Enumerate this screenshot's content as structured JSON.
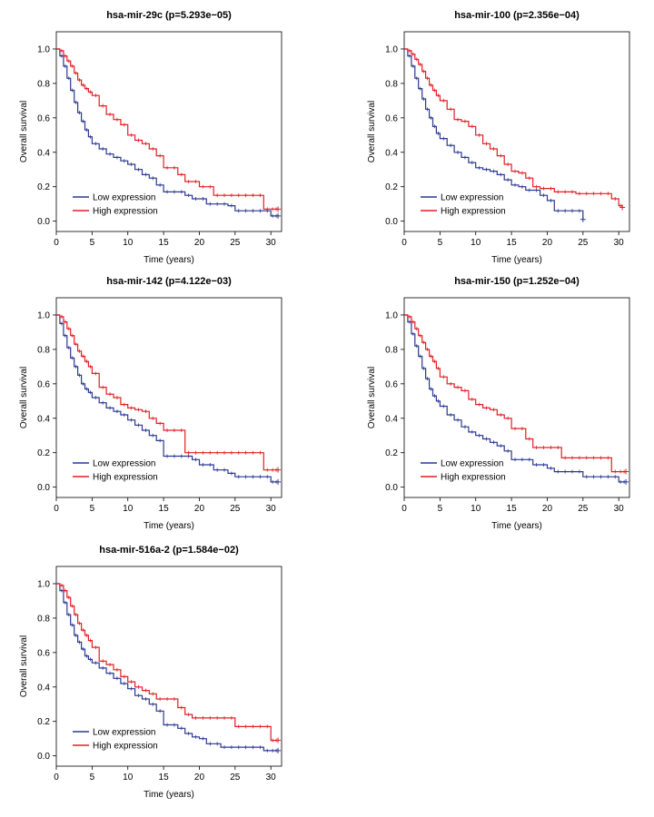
{
  "chart_data": [
    {
      "type": "line",
      "title": "hsa-mir-29c (p=5.293e−05)",
      "xlabel": "Time (years)",
      "ylabel": "Overall survival",
      "xlim": [
        0,
        31.5
      ],
      "ylim": [
        -0.06,
        1.1
      ],
      "xticks": [
        0,
        5,
        10,
        15,
        20,
        25,
        30
      ],
      "yticks": [
        "0.0",
        "0.2",
        "0.4",
        "0.6",
        "0.8",
        "1.0"
      ],
      "legend_position": "bottom-left",
      "series": [
        {
          "name": "Low expression",
          "color": "#2b3990",
          "x": [
            0,
            0.5,
            1,
            1.5,
            2,
            2.5,
            3,
            3.5,
            4,
            4.5,
            5,
            6,
            7,
            8,
            9,
            10,
            11,
            12,
            13,
            14,
            15,
            16,
            17,
            18,
            19,
            20,
            21,
            22,
            23,
            24,
            25,
            26,
            27,
            28,
            29,
            30,
            30.5,
            31
          ],
          "y": [
            1.0,
            0.96,
            0.9,
            0.83,
            0.76,
            0.69,
            0.63,
            0.58,
            0.53,
            0.49,
            0.45,
            0.42,
            0.39,
            0.37,
            0.35,
            0.33,
            0.3,
            0.27,
            0.25,
            0.21,
            0.17,
            0.17,
            0.17,
            0.15,
            0.13,
            0.13,
            0.1,
            0.1,
            0.1,
            0.09,
            0.06,
            0.06,
            0.06,
            0.06,
            0.06,
            0.03,
            0.03,
            0.03
          ]
        },
        {
          "name": "High expression",
          "color": "#e31e24",
          "x": [
            0,
            0.5,
            1,
            1.5,
            2,
            2.5,
            3,
            3.5,
            4,
            4.5,
            5,
            6,
            7,
            8,
            9,
            10,
            11,
            12,
            13,
            14,
            15,
            16,
            17,
            18,
            19,
            20,
            21,
            22,
            23,
            24,
            25,
            26,
            27,
            28,
            29,
            30,
            30.5,
            31
          ],
          "y": [
            1.0,
            0.99,
            0.96,
            0.93,
            0.9,
            0.86,
            0.82,
            0.79,
            0.77,
            0.75,
            0.73,
            0.67,
            0.62,
            0.59,
            0.56,
            0.5,
            0.47,
            0.45,
            0.42,
            0.38,
            0.31,
            0.31,
            0.27,
            0.23,
            0.23,
            0.2,
            0.2,
            0.15,
            0.15,
            0.15,
            0.15,
            0.15,
            0.15,
            0.15,
            0.07,
            0.07,
            0.07,
            0.07
          ]
        }
      ]
    },
    {
      "type": "line",
      "title": "hsa-mir-100 (p=2.356e−04)",
      "xlabel": "Time (years)",
      "ylabel": "Overall survival",
      "xlim": [
        0,
        31.5
      ],
      "ylim": [
        -0.06,
        1.1
      ],
      "xticks": [
        0,
        5,
        10,
        15,
        20,
        25,
        30
      ],
      "yticks": [
        "0.0",
        "0.2",
        "0.4",
        "0.6",
        "0.8",
        "1.0"
      ],
      "legend_position": "bottom-left",
      "series": [
        {
          "name": "Low expression",
          "color": "#2b3990",
          "x": [
            0,
            0.5,
            1,
            1.5,
            2,
            2.5,
            3,
            3.5,
            4,
            4.5,
            5,
            6,
            7,
            8,
            9,
            10,
            11,
            12,
            13,
            14,
            15,
            16,
            17,
            18,
            19,
            20,
            21,
            22,
            23,
            24,
            25
          ],
          "y": [
            1.0,
            0.96,
            0.9,
            0.83,
            0.77,
            0.71,
            0.65,
            0.6,
            0.55,
            0.51,
            0.48,
            0.44,
            0.4,
            0.37,
            0.34,
            0.31,
            0.3,
            0.29,
            0.27,
            0.24,
            0.21,
            0.2,
            0.18,
            0.18,
            0.15,
            0.12,
            0.06,
            0.06,
            0.06,
            0.06,
            0.01
          ]
        },
        {
          "name": "High expression",
          "color": "#e31e24",
          "x": [
            0,
            0.5,
            1,
            1.5,
            2,
            2.5,
            3,
            3.5,
            4,
            4.5,
            5,
            6,
            7,
            8,
            9,
            10,
            11,
            12,
            13,
            14,
            15,
            16,
            17,
            18,
            19,
            20,
            21,
            22,
            23,
            24,
            25,
            26,
            27,
            28,
            29,
            30,
            30.5
          ],
          "y": [
            1.0,
            0.99,
            0.97,
            0.94,
            0.91,
            0.87,
            0.83,
            0.79,
            0.76,
            0.73,
            0.7,
            0.65,
            0.59,
            0.58,
            0.55,
            0.5,
            0.45,
            0.42,
            0.38,
            0.33,
            0.29,
            0.28,
            0.25,
            0.2,
            0.19,
            0.19,
            0.17,
            0.17,
            0.17,
            0.16,
            0.16,
            0.16,
            0.16,
            0.16,
            0.13,
            0.09,
            0.08
          ]
        }
      ]
    },
    {
      "type": "line",
      "title": "hsa-mir-142 (p=4.122e−03)",
      "xlabel": "Time (years)",
      "ylabel": "Overall survival",
      "xlim": [
        0,
        31.5
      ],
      "ylim": [
        -0.06,
        1.1
      ],
      "xticks": [
        0,
        5,
        10,
        15,
        20,
        25,
        30
      ],
      "yticks": [
        "0.0",
        "0.2",
        "0.4",
        "0.6",
        "0.8",
        "1.0"
      ],
      "legend_position": "bottom-left",
      "series": [
        {
          "name": "Low expression",
          "color": "#2b3990",
          "x": [
            0,
            0.5,
            1,
            1.5,
            2,
            2.5,
            3,
            3.5,
            4,
            4.5,
            5,
            6,
            7,
            8,
            9,
            10,
            11,
            12,
            13,
            14,
            15,
            16,
            17,
            18,
            19,
            20,
            21,
            22,
            23,
            24,
            25,
            26,
            27,
            28,
            29,
            30,
            30.5,
            31
          ],
          "y": [
            1.0,
            0.95,
            0.88,
            0.81,
            0.75,
            0.7,
            0.65,
            0.6,
            0.57,
            0.55,
            0.52,
            0.49,
            0.46,
            0.44,
            0.42,
            0.39,
            0.36,
            0.33,
            0.3,
            0.27,
            0.18,
            0.18,
            0.18,
            0.18,
            0.16,
            0.13,
            0.13,
            0.1,
            0.1,
            0.08,
            0.06,
            0.06,
            0.06,
            0.06,
            0.06,
            0.03,
            0.03,
            0.03
          ]
        },
        {
          "name": "High expression",
          "color": "#e31e24",
          "x": [
            0,
            0.5,
            1,
            1.5,
            2,
            2.5,
            3,
            3.5,
            4,
            4.5,
            5,
            6,
            7,
            8,
            9,
            10,
            11,
            12,
            13,
            14,
            15,
            16,
            17,
            18,
            19,
            20,
            21,
            22,
            23,
            24,
            25,
            26,
            27,
            28,
            29,
            30,
            30.5,
            31
          ],
          "y": [
            1.0,
            0.99,
            0.96,
            0.92,
            0.88,
            0.83,
            0.79,
            0.76,
            0.73,
            0.7,
            0.66,
            0.58,
            0.54,
            0.52,
            0.48,
            0.46,
            0.45,
            0.44,
            0.4,
            0.37,
            0.33,
            0.33,
            0.33,
            0.2,
            0.2,
            0.2,
            0.2,
            0.2,
            0.2,
            0.2,
            0.2,
            0.2,
            0.2,
            0.2,
            0.1,
            0.1,
            0.1,
            0.1
          ]
        }
      ]
    },
    {
      "type": "line",
      "title": "hsa-mir-150 (p=1.252e−04)",
      "xlabel": "Time (years)",
      "ylabel": "Overall survival",
      "xlim": [
        0,
        31.5
      ],
      "ylim": [
        -0.06,
        1.1
      ],
      "xticks": [
        0,
        5,
        10,
        15,
        20,
        25,
        30
      ],
      "yticks": [
        "0.0",
        "0.2",
        "0.4",
        "0.6",
        "0.8",
        "1.0"
      ],
      "legend_position": "bottom-left",
      "series": [
        {
          "name": "Low expression",
          "color": "#2b3990",
          "x": [
            0,
            0.5,
            1,
            1.5,
            2,
            2.5,
            3,
            3.5,
            4,
            4.5,
            5,
            6,
            7,
            8,
            9,
            10,
            11,
            12,
            13,
            14,
            15,
            16,
            17,
            18,
            19,
            20,
            21,
            22,
            23,
            24,
            25,
            26,
            27,
            28,
            29,
            30,
            30.5,
            31
          ],
          "y": [
            1.0,
            0.96,
            0.89,
            0.82,
            0.76,
            0.69,
            0.63,
            0.57,
            0.53,
            0.5,
            0.47,
            0.42,
            0.39,
            0.35,
            0.32,
            0.3,
            0.28,
            0.26,
            0.24,
            0.21,
            0.16,
            0.16,
            0.16,
            0.13,
            0.13,
            0.11,
            0.09,
            0.09,
            0.09,
            0.09,
            0.06,
            0.06,
            0.06,
            0.06,
            0.06,
            0.03,
            0.03,
            0.03
          ]
        },
        {
          "name": "High expression",
          "color": "#e31e24",
          "x": [
            0,
            0.5,
            1,
            1.5,
            2,
            2.5,
            3,
            3.5,
            4,
            4.5,
            5,
            6,
            7,
            8,
            9,
            10,
            11,
            12,
            13,
            14,
            15,
            16,
            17,
            18,
            19,
            20,
            21,
            22,
            23,
            24,
            25,
            26,
            27,
            28,
            29,
            30,
            30.5,
            31
          ],
          "y": [
            1.0,
            0.99,
            0.96,
            0.92,
            0.88,
            0.84,
            0.8,
            0.76,
            0.73,
            0.69,
            0.64,
            0.6,
            0.58,
            0.56,
            0.51,
            0.48,
            0.46,
            0.45,
            0.42,
            0.4,
            0.34,
            0.34,
            0.28,
            0.23,
            0.23,
            0.23,
            0.23,
            0.17,
            0.17,
            0.17,
            0.17,
            0.17,
            0.17,
            0.17,
            0.09,
            0.09,
            0.09,
            0.09
          ]
        }
      ]
    },
    {
      "type": "line",
      "title": "hsa-mir-516a-2 (p=1.584e−02)",
      "xlabel": "Time (years)",
      "ylabel": "Overall survival",
      "xlim": [
        0,
        31.5
      ],
      "ylim": [
        -0.06,
        1.1
      ],
      "xticks": [
        0,
        5,
        10,
        15,
        20,
        25,
        30
      ],
      "yticks": [
        "0.0",
        "0.2",
        "0.4",
        "0.6",
        "0.8",
        "1.0"
      ],
      "legend_position": "bottom-left",
      "series": [
        {
          "name": "Low expression",
          "color": "#2b3990",
          "x": [
            0,
            0.5,
            1,
            1.5,
            2,
            2.5,
            3,
            3.5,
            4,
            4.5,
            5,
            6,
            7,
            8,
            9,
            10,
            11,
            12,
            13,
            14,
            15,
            16,
            17,
            18,
            19,
            20,
            21,
            22,
            23,
            24,
            25,
            26,
            27,
            28,
            29,
            30,
            30.5,
            31
          ],
          "y": [
            1.0,
            0.96,
            0.89,
            0.82,
            0.76,
            0.7,
            0.66,
            0.62,
            0.58,
            0.56,
            0.54,
            0.51,
            0.48,
            0.45,
            0.42,
            0.39,
            0.35,
            0.33,
            0.3,
            0.26,
            0.18,
            0.18,
            0.16,
            0.13,
            0.11,
            0.1,
            0.07,
            0.07,
            0.05,
            0.05,
            0.05,
            0.05,
            0.05,
            0.05,
            0.03,
            0.03,
            0.03,
            0.03
          ]
        },
        {
          "name": "High expression",
          "color": "#e31e24",
          "x": [
            0,
            0.5,
            1,
            1.5,
            2,
            2.5,
            3,
            3.5,
            4,
            4.5,
            5,
            6,
            7,
            8,
            9,
            10,
            11,
            12,
            13,
            14,
            15,
            16,
            17,
            18,
            19,
            20,
            21,
            22,
            23,
            24,
            25,
            26,
            27,
            28,
            29,
            30,
            30.5,
            31
          ],
          "y": [
            1.0,
            0.99,
            0.96,
            0.92,
            0.87,
            0.82,
            0.77,
            0.73,
            0.7,
            0.67,
            0.63,
            0.55,
            0.53,
            0.5,
            0.46,
            0.43,
            0.4,
            0.38,
            0.36,
            0.33,
            0.33,
            0.33,
            0.28,
            0.24,
            0.22,
            0.22,
            0.22,
            0.22,
            0.22,
            0.22,
            0.17,
            0.17,
            0.17,
            0.17,
            0.17,
            0.09,
            0.09,
            0.09
          ]
        }
      ]
    }
  ]
}
